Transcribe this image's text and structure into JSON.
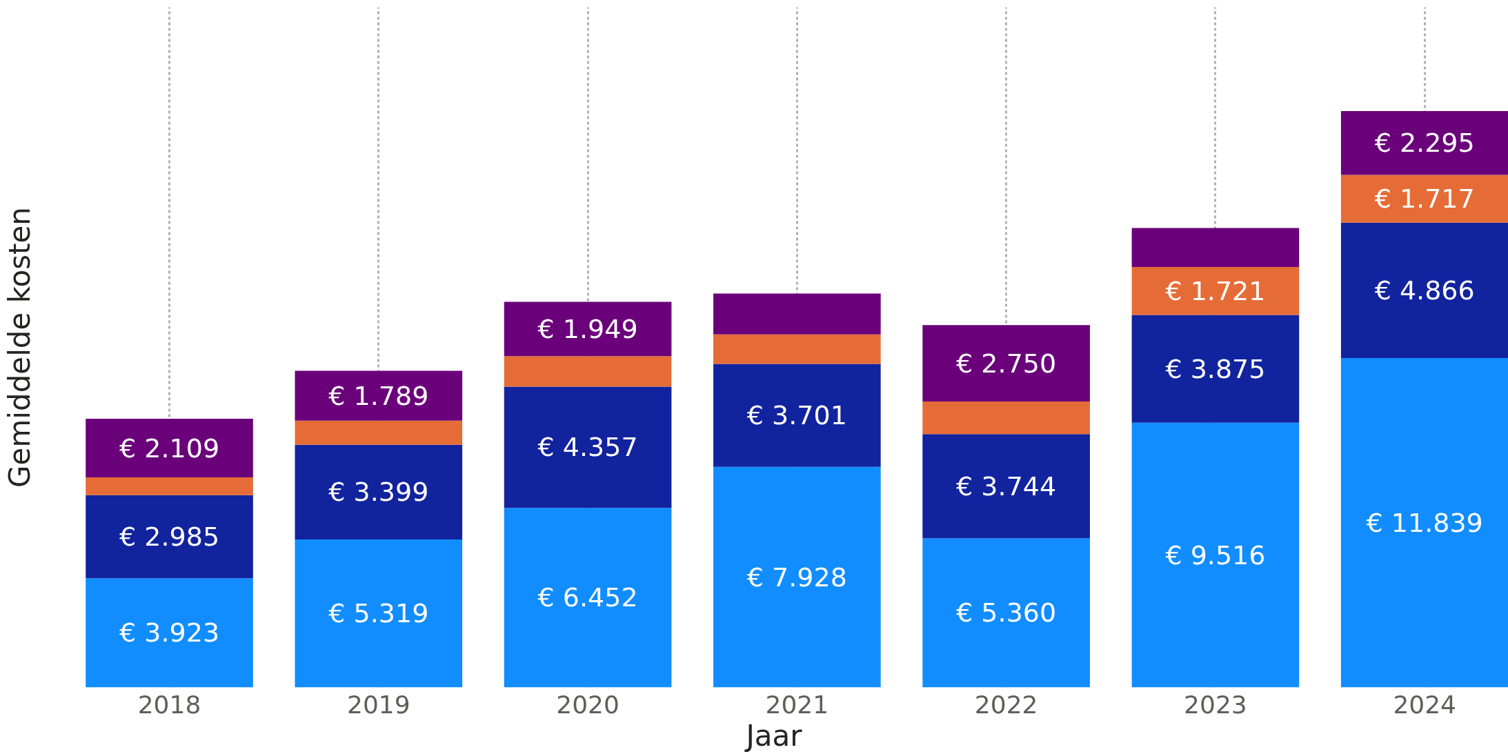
{
  "chart_data": {
    "type": "bar",
    "stacked": true,
    "xlabel": "Jaar",
    "ylabel": "Gemiddelde kosten",
    "grid": "x",
    "categories": [
      "2018",
      "2019",
      "2020",
      "2021",
      "2022",
      "2023",
      "2024"
    ],
    "series": [
      {
        "color": "#118dff",
        "values": [
          3923,
          5319,
          6452,
          7928,
          5360,
          9516,
          11839
        ],
        "value_labels": [
          "€ 3.923",
          "€ 5.319",
          "€ 6.452",
          "€ 7.928",
          "€ 5.360",
          "€ 9.516",
          "€ 11.839"
        ]
      },
      {
        "color": "#12239e",
        "values": [
          2985,
          3399,
          4357,
          3701,
          3744,
          3875,
          4866
        ],
        "value_labels": [
          "€ 2.985",
          "€ 3.399",
          "€ 4.357",
          "€ 3.701",
          "€ 3.744",
          "€ 3.875",
          "€ 4.866"
        ]
      },
      {
        "color": "#e66c37",
        "values": [
          640,
          870,
          1100,
          1060,
          1170,
          1721,
          1717
        ],
        "value_labels": [
          null,
          null,
          null,
          null,
          null,
          "€ 1.721",
          "€ 1.717"
        ]
      },
      {
        "color": "#6b007b",
        "values": [
          2109,
          1789,
          1949,
          1470,
          2750,
          1400,
          2295
        ],
        "value_labels": [
          "€ 2.109",
          "€ 1.789",
          "€ 1.949",
          null,
          "€ 2.750",
          null,
          "€ 2.295"
        ]
      }
    ]
  }
}
